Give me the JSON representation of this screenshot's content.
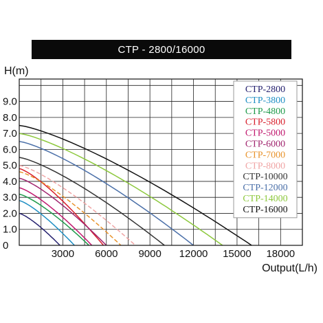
{
  "chart_data": {
    "type": "line",
    "title": "CTP - 2800/16000",
    "ylabel": "H(m)",
    "xlabel": "Output(L/h)",
    "xlim": [
      0,
      19500
    ],
    "ylim": [
      0,
      10.4
    ],
    "xticks": [
      3000,
      6000,
      9000,
      12000,
      15000,
      18000
    ],
    "xtick_labels": [
      "3000",
      "6000",
      "9000",
      "12000",
      "15000",
      "18000"
    ],
    "yticks": [
      0,
      1,
      2,
      3,
      4,
      5,
      6,
      7,
      8,
      9
    ],
    "ytick_labels": [
      "0",
      "1.0",
      "2.0",
      "3.0",
      "4.0",
      "5.0",
      "6.0",
      "7.0",
      "8.0",
      "9.0"
    ],
    "grid": true,
    "legend_position": "top-right",
    "series": [
      {
        "name": "CTP-2800",
        "color": "#24206e",
        "dash": false,
        "max_head": 2.0,
        "max_flow": 2800
      },
      {
        "name": "CTP-3800",
        "color": "#1f8fc4",
        "dash": false,
        "max_head": 2.8,
        "max_flow": 3800
      },
      {
        "name": "CTP-4800",
        "color": "#1f9a4a",
        "dash": false,
        "max_head": 3.2,
        "max_flow": 4800
      },
      {
        "name": "CTP-5800",
        "color": "#d81e2b",
        "dash": false,
        "max_head": 4.8,
        "max_flow": 5800
      },
      {
        "name": "CTP-5000",
        "color": "#c0186e",
        "dash": false,
        "max_head": 3.6,
        "max_flow": 5000
      },
      {
        "name": "CTP-6000",
        "color": "#a0246e",
        "dash": false,
        "max_head": 4.2,
        "max_flow": 6000
      },
      {
        "name": "CTP-7000",
        "color": "#e8922a",
        "dash": true,
        "max_head": 4.6,
        "max_flow": 7000
      },
      {
        "name": "CTP-8000",
        "color": "#f0a4a4",
        "dash": true,
        "max_head": 5.0,
        "max_flow": 8000
      },
      {
        "name": "CTP-10000",
        "color": "#333333",
        "dash": false,
        "max_head": 5.5,
        "max_flow": 10000
      },
      {
        "name": "CTP-12000",
        "color": "#4a6fa8",
        "dash": false,
        "max_head": 6.5,
        "max_flow": 12000
      },
      {
        "name": "CTP-14000",
        "color": "#8cc83c",
        "dash": false,
        "max_head": 7.0,
        "max_flow": 14000
      },
      {
        "name": "CTP-16000",
        "color": "#111111",
        "dash": false,
        "max_head": 7.5,
        "max_flow": 16000
      }
    ]
  }
}
